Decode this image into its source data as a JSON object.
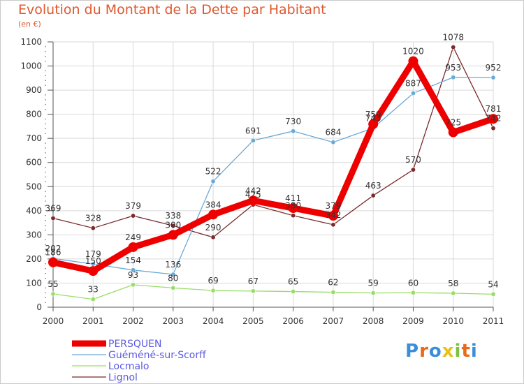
{
  "title": "Evolution du Montant de la Dette par Habitant",
  "unit_label": "(en €)",
  "brand": "Proxiti",
  "colors": {
    "title": "#e0582e",
    "grid": "#d9d9d9",
    "axis": "#555555",
    "minor_tick": "#e05050"
  },
  "chart_data": {
    "type": "line",
    "title": "Evolution du Montant de la Dette par Habitant",
    "subtitle": "(en €)",
    "x": [
      "2000",
      "2001",
      "2002",
      "2003",
      "2004",
      "2005",
      "2006",
      "2007",
      "2008",
      "2009",
      "2010",
      "2011"
    ],
    "yticks": [
      "0",
      "100",
      "200",
      "300",
      "400",
      "500",
      "600",
      "700",
      "800",
      "900",
      "1000",
      "1100"
    ],
    "ylim": [
      0,
      1100
    ],
    "grid": true,
    "legend_position": "bottom-left",
    "series": [
      {
        "name": "PERSQUEN",
        "color": "#ee0000",
        "values": [
          186,
          150,
          249,
          300,
          384,
          442,
          411,
          379,
          759,
          1020,
          725,
          781
        ],
        "labels": [
          "186",
          "150",
          "249",
          "300",
          "384",
          "442",
          "411",
          "379",
          "759",
          "1020",
          "725",
          "781"
        ]
      },
      {
        "name": "Guéméné-sur-Scorff",
        "color": "#6aaad8",
        "values": [
          202,
          179,
          154,
          136,
          522,
          691,
          730,
          684,
          743,
          887,
          953,
          952
        ],
        "labels": [
          "202",
          "179",
          "154",
          "136",
          "522",
          "691",
          "730",
          "684",
          "743",
          "887",
          "953",
          "952"
        ]
      },
      {
        "name": "Locmalo",
        "color": "#99dd66",
        "values": [
          55,
          33,
          93,
          80,
          69,
          67,
          65,
          62,
          59,
          60,
          58,
          54
        ],
        "labels": [
          "55",
          "33",
          "93",
          "80",
          "69",
          "67",
          "65",
          "62",
          "59",
          "60",
          "58",
          "54"
        ]
      },
      {
        "name": "Lignol",
        "color": "#7a2a2a",
        "values": [
          369,
          328,
          379,
          338,
          290,
          425,
          380,
          342,
          463,
          570,
          1078,
          742
        ],
        "labels": [
          "369",
          "328",
          "379",
          "338",
          "290",
          "425",
          "380",
          "342",
          "463",
          "570",
          "1078",
          "742"
        ]
      }
    ]
  }
}
